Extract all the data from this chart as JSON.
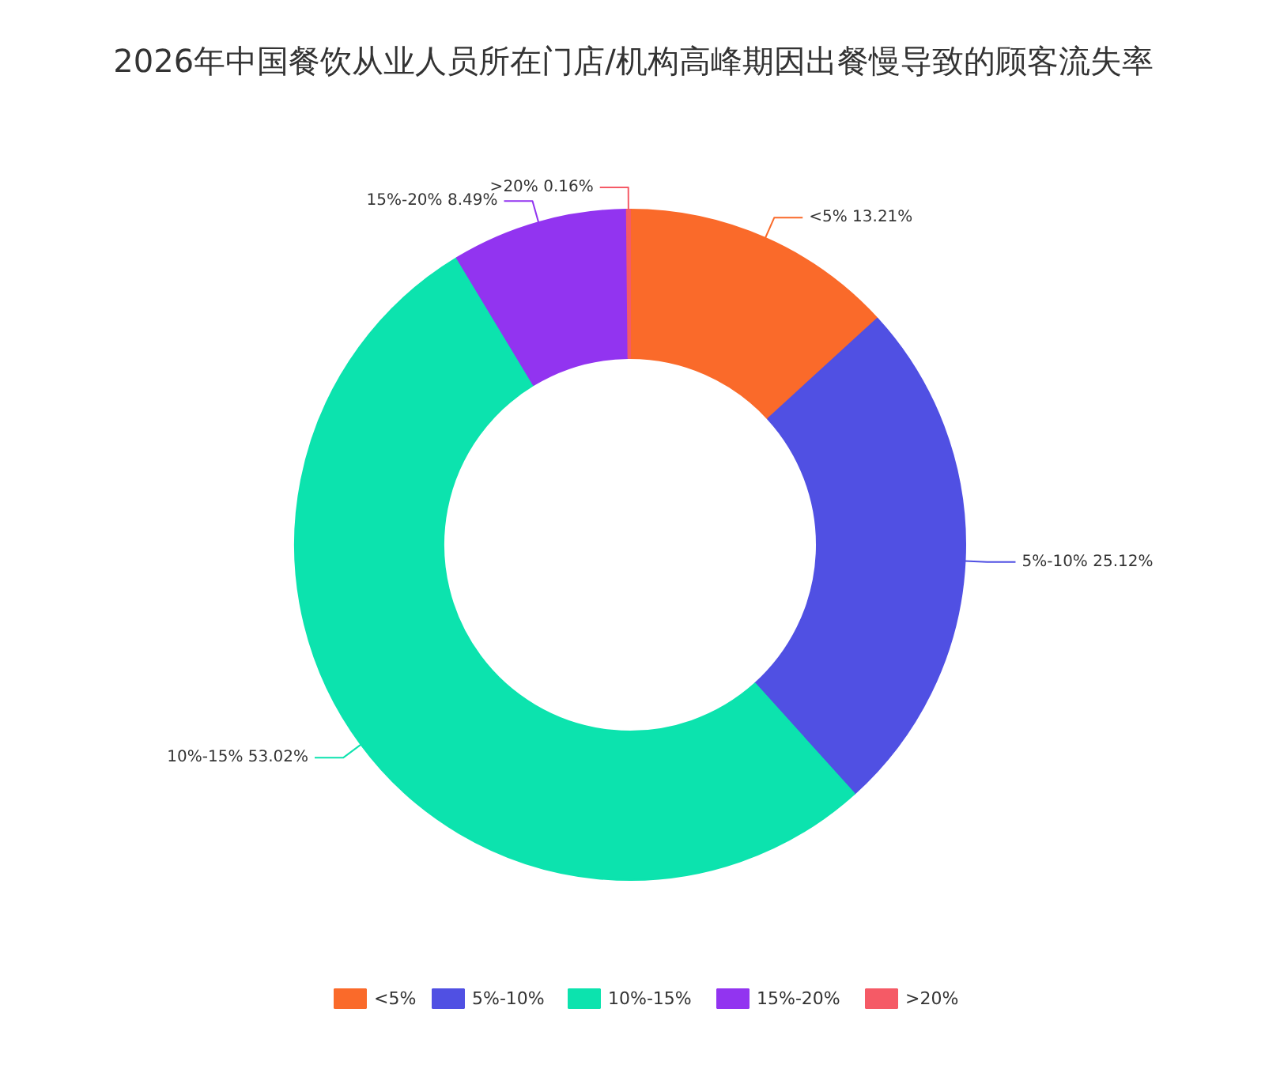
{
  "chart_data": {
    "type": "donut",
    "title": "2026年中国餐饮从业人员所在门店/机构高峰期因出餐慢导致的顾客流失率",
    "categories": [
      "<5%",
      "5%-10%",
      "10%-15%",
      "15%-20%",
      ">20%"
    ],
    "values": [
      13.21,
      25.12,
      53.02,
      8.49,
      0.16
    ],
    "colors": [
      "#fa6a2a",
      "#5050e3",
      "#0ce3ae",
      "#9234f0",
      "#f55a66"
    ],
    "value_labels": [
      "<5% 13.21%",
      "5%-10% 25.12%",
      "10%-15% 53.02%",
      "15%-20% 8.49%",
      ">20% 0.16%"
    ],
    "legend": "bottom"
  }
}
